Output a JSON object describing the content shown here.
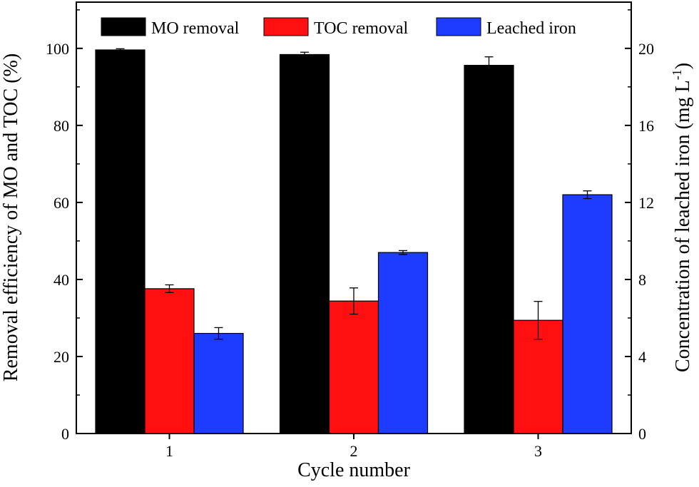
{
  "chart_data": {
    "type": "bar",
    "title": "",
    "xlabel": "Cycle number",
    "ylabel_left": "Removal efficiency of MO and TOC (%)",
    "ylabel_right_main": "Concentration of leached iron (mg L",
    "ylabel_right_sup": "-1",
    "ylabel_right_close": ")",
    "categories": [
      "1",
      "2",
      "3"
    ],
    "ylim_left": [
      0,
      112
    ],
    "ylim_right": [
      0,
      22.4
    ],
    "yticks_left": [
      0,
      20,
      40,
      60,
      80,
      100
    ],
    "yticks_right": [
      0,
      4,
      8,
      12,
      16,
      20
    ],
    "legend_position": "top",
    "series": [
      {
        "name": "MO removal",
        "axis": "left",
        "color": "#000000",
        "values": [
          99.6,
          98.4,
          95.6
        ],
        "errors": [
          0.3,
          0.6,
          2.2
        ]
      },
      {
        "name": "TOC removal",
        "axis": "left",
        "color": "#ff1010",
        "values": [
          37.6,
          34.4,
          29.4
        ],
        "errors": [
          1.0,
          3.4,
          4.9
        ]
      },
      {
        "name": "Leached iron",
        "axis": "right",
        "color": "#1e3cff",
        "values": [
          5.2,
          9.4,
          12.4
        ],
        "errors": [
          0.3,
          0.1,
          0.2
        ]
      }
    ]
  }
}
